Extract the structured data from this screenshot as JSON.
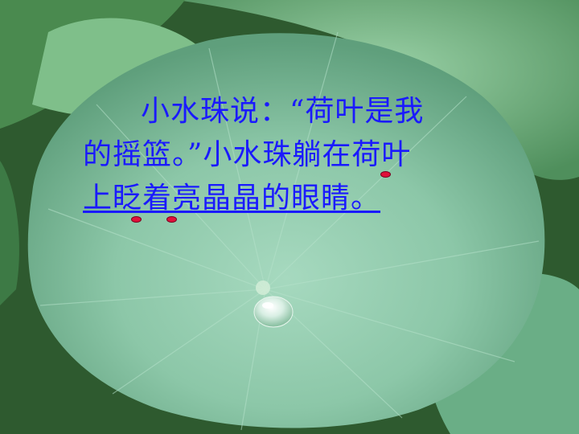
{
  "slide": {
    "lines": [
      "小水珠说：“荷叶是我",
      "的摇篮。”小水珠躺在荷叶",
      "上眨着亮晶晶的眼睛。"
    ]
  },
  "colors": {
    "text": "#1a1aff",
    "leaf_light": "#9fd3b6",
    "leaf_mid": "#6fb48f",
    "background_dark": "#2f5a30",
    "marks": "#e0103a"
  }
}
